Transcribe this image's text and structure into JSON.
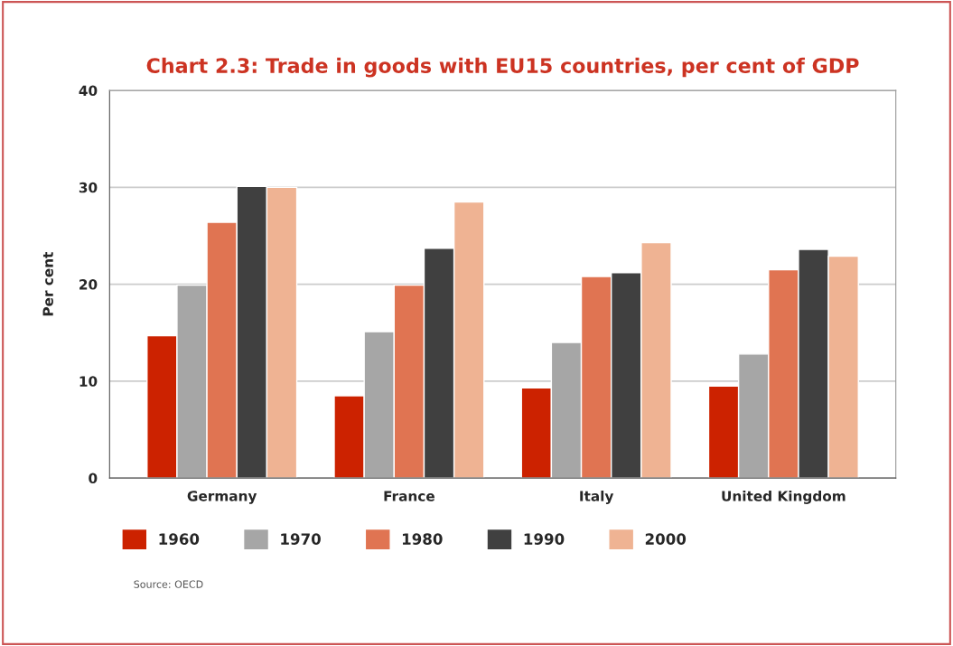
{
  "chart_data": {
    "type": "bar",
    "title": "Chart 2.3: Trade in goods with EU15 countries, per cent of GDP",
    "ylabel": "Per cent",
    "categories": [
      "Germany",
      "France",
      "Italy",
      "United Kingdom"
    ],
    "series": [
      {
        "name": "1960",
        "color": "#cc2200",
        "values": [
          14.7,
          8.5,
          9.3,
          9.5
        ]
      },
      {
        "name": "1970",
        "color": "#a6a6a6",
        "values": [
          19.9,
          15.1,
          14.0,
          12.8
        ]
      },
      {
        "name": "1980",
        "color": "#e07452",
        "values": [
          26.4,
          19.9,
          20.8,
          21.5
        ]
      },
      {
        "name": "1990",
        "color": "#404040",
        "values": [
          30.1,
          23.7,
          21.2,
          23.6
        ]
      },
      {
        "name": "2000",
        "color": "#efb393",
        "values": [
          30.0,
          28.5,
          24.3,
          22.9
        ]
      }
    ],
    "ylim": [
      0,
      40
    ],
    "yticks": [
      0,
      10,
      20,
      30,
      40
    ],
    "grid": "y",
    "legend": "bottom",
    "annotations": [
      "Source: OECD"
    ]
  }
}
